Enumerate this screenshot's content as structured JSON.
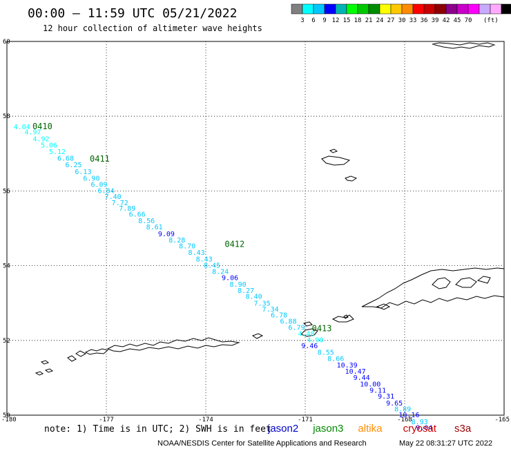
{
  "header": {
    "title": "00:00 – 11:59 UTC 05/21/2022",
    "subtitle": "12 hour collection of altimeter wave heights"
  },
  "legend": {
    "colors": [
      "#808080",
      "#00ffff",
      "#00c8ff",
      "#0000ff",
      "#00b4b4",
      "#00ff00",
      "#00c800",
      "#008c00",
      "#ffff00",
      "#ffc800",
      "#ff8c00",
      "#ff0000",
      "#c80000",
      "#8c0000",
      "#8c008c",
      "#c800c8",
      "#ff00ff",
      "#c8aaff",
      "#ffaaff",
      "#000000"
    ],
    "labels": [
      "3",
      "6",
      "9",
      "12",
      "15",
      "18",
      "21",
      "24",
      "27",
      "30",
      "33",
      "36",
      "39",
      "42",
      "45",
      "70"
    ],
    "unit": "(ft)"
  },
  "lat_labels": [
    "60",
    "58",
    "56",
    "54",
    "52",
    "50"
  ],
  "lon_labels": [
    "-180",
    "-177",
    "-174",
    "-171",
    "-168",
    "-165"
  ],
  "track_labels": [
    {
      "id": "0410",
      "lon": -179.23,
      "lat": 57.65
    },
    {
      "id": "0411",
      "lon": -177.5,
      "lat": 56.78
    },
    {
      "id": "0412",
      "lon": -173.43,
      "lat": 54.5
    },
    {
      "id": "0413",
      "lon": -170.8,
      "lat": 52.25
    }
  ],
  "swh_values": [
    {
      "v": "4.04",
      "lon": -179.8,
      "lat": 57.65
    },
    {
      "v": "4.97",
      "lon": -179.47,
      "lat": 57.51
    },
    {
      "v": "4.92",
      "lon": -179.22,
      "lat": 57.33
    },
    {
      "v": "5.06",
      "lon": -178.98,
      "lat": 57.16
    },
    {
      "v": "5.12",
      "lon": -178.73,
      "lat": 56.99
    },
    {
      "v": "6.68",
      "lon": -178.48,
      "lat": 56.81
    },
    {
      "v": "6.25",
      "lon": -178.24,
      "lat": 56.64
    },
    {
      "v": "6.13",
      "lon": -177.95,
      "lat": 56.45
    },
    {
      "v": "6.90",
      "lon": -177.7,
      "lat": 56.28
    },
    {
      "v": "6.09",
      "lon": -177.47,
      "lat": 56.11
    },
    {
      "v": "6.84",
      "lon": -177.26,
      "lat": 55.94
    },
    {
      "v": "7.40",
      "lon": -177.05,
      "lat": 55.79
    },
    {
      "v": "7.72",
      "lon": -176.84,
      "lat": 55.62
    },
    {
      "v": "7.89",
      "lon": -176.62,
      "lat": 55.47
    },
    {
      "v": "6.66",
      "lon": -176.32,
      "lat": 55.31
    },
    {
      "v": "8.56",
      "lon": -176.04,
      "lat": 55.14
    },
    {
      "v": "8.61",
      "lon": -175.8,
      "lat": 54.97
    },
    {
      "v": "9.09",
      "lon": -175.44,
      "lat": 54.79
    },
    {
      "v": "8.28",
      "lon": -175.12,
      "lat": 54.62
    },
    {
      "v": "8.70",
      "lon": -174.81,
      "lat": 54.46
    },
    {
      "v": "8.43",
      "lon": -174.53,
      "lat": 54.29
    },
    {
      "v": "8.43",
      "lon": -174.3,
      "lat": 54.11
    },
    {
      "v": "8.45",
      "lon": -174.06,
      "lat": 53.95
    },
    {
      "v": "8.24",
      "lon": -173.81,
      "lat": 53.78
    },
    {
      "v": "9.06",
      "lon": -173.52,
      "lat": 53.61
    },
    {
      "v": "8.90",
      "lon": -173.28,
      "lat": 53.44
    },
    {
      "v": "8.27",
      "lon": -173.04,
      "lat": 53.27
    },
    {
      "v": "8.40",
      "lon": -172.8,
      "lat": 53.11
    },
    {
      "v": "7.35",
      "lon": -172.55,
      "lat": 52.93
    },
    {
      "v": "7.34",
      "lon": -172.3,
      "lat": 52.77
    },
    {
      "v": "6.78",
      "lon": -172.04,
      "lat": 52.62
    },
    {
      "v": "6.88",
      "lon": -171.76,
      "lat": 52.45
    },
    {
      "v": "6.79",
      "lon": -171.51,
      "lat": 52.28
    },
    {
      "v": "4.48",
      "lon": -171.22,
      "lat": 52.12
    },
    {
      "v": "4.90",
      "lon": -170.95,
      "lat": 51.95
    },
    {
      "v": "9.46",
      "lon": -171.12,
      "lat": 51.79
    },
    {
      "v": "8.55",
      "lon": -170.63,
      "lat": 51.62
    },
    {
      "v": "8.66",
      "lon": -170.33,
      "lat": 51.45
    },
    {
      "v": "10.39",
      "lon": -170.05,
      "lat": 51.28
    },
    {
      "v": "10.47",
      "lon": -169.8,
      "lat": 51.11
    },
    {
      "v": "9.44",
      "lon": -169.55,
      "lat": 50.94
    },
    {
      "v": "10.00",
      "lon": -169.35,
      "lat": 50.77
    },
    {
      "v": "9.11",
      "lon": -169.06,
      "lat": 50.6
    },
    {
      "v": "9.31",
      "lon": -168.81,
      "lat": 50.44
    },
    {
      "v": "9.65",
      "lon": -168.56,
      "lat": 50.26
    },
    {
      "v": "8.89",
      "lon": -168.31,
      "lat": 50.1
    },
    {
      "v": "10.16",
      "lon": -168.18,
      "lat": 49.94
    },
    {
      "v": "8.93",
      "lon": -167.8,
      "lat": 49.76
    },
    {
      "v": "9.04",
      "lon": -167.66,
      "lat": 49.6
    }
  ],
  "footer": {
    "note": "note:  1) Time is in UTC; 2) SWH is in feet",
    "sats": [
      {
        "name": "jason2",
        "color": "#0000cc"
      },
      {
        "name": "jason3",
        "color": "#008800"
      },
      {
        "name": "altika",
        "color": "#ff8c00"
      },
      {
        "name": "cryosat",
        "color": "#cc0000"
      },
      {
        "name": "s3a",
        "color": "#990000"
      }
    ],
    "credit": "NOAA/NESDIS Center for Satellite Applications and Research",
    "timestamp": "May 22 08:31:27 UTC 2022"
  }
}
